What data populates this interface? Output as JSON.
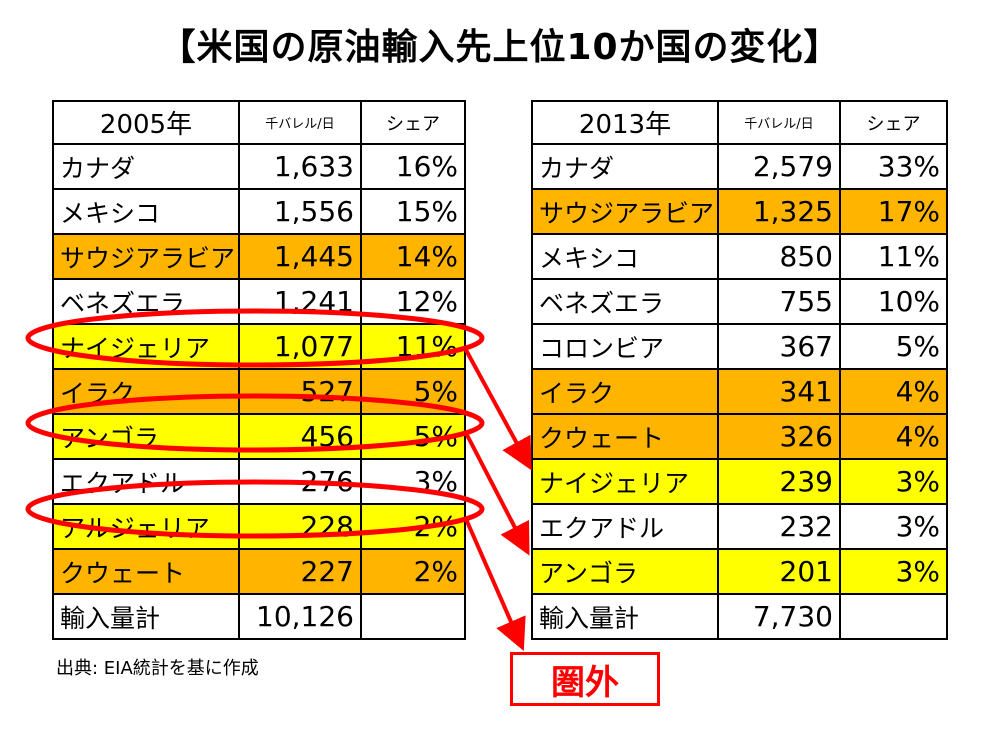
{
  "title": "【米国の原油輸入先上位10か国の変化】",
  "source": "出典: EIA統計を基に作成",
  "out_label": "圏外",
  "colors": {
    "orange": "#ffb400",
    "yellow": "#ffff00",
    "red": "#ff0000"
  },
  "chart_data": [
    {
      "type": "table",
      "title": "2005年",
      "columns": [
        "2005年",
        "千バレル/日",
        "シェア"
      ],
      "rows": [
        {
          "name": "カナダ",
          "value": "1,633",
          "share": "16%",
          "highlight": "none"
        },
        {
          "name": "メキシコ",
          "value": "1,556",
          "share": "15%",
          "highlight": "none"
        },
        {
          "name": "サウジアラビア",
          "value": "1,445",
          "share": "14%",
          "highlight": "orange"
        },
        {
          "name": "ベネズエラ",
          "value": "1,241",
          "share": "12%",
          "highlight": "none"
        },
        {
          "name": "ナイジェリア",
          "value": "1,077",
          "share": "11%",
          "highlight": "yellow"
        },
        {
          "name": "イラク",
          "value": "527",
          "share": "5%",
          "highlight": "orange"
        },
        {
          "name": "アンゴラ",
          "value": "456",
          "share": "5%",
          "highlight": "yellow"
        },
        {
          "name": "エクアドル",
          "value": "276",
          "share": "3%",
          "highlight": "none"
        },
        {
          "name": "アルジェリア",
          "value": "228",
          "share": "2%",
          "highlight": "yellow"
        },
        {
          "name": "クウェート",
          "value": "227",
          "share": "2%",
          "highlight": "orange"
        }
      ],
      "total": {
        "name": "輸入量計",
        "value": "10,126"
      }
    },
    {
      "type": "table",
      "title": "2013年",
      "columns": [
        "2013年",
        "千バレル/日",
        "シェア"
      ],
      "rows": [
        {
          "name": "カナダ",
          "value": "2,579",
          "share": "33%",
          "highlight": "none"
        },
        {
          "name": "サウジアラビア",
          "value": "1,325",
          "share": "17%",
          "highlight": "orange"
        },
        {
          "name": "メキシコ",
          "value": "850",
          "share": "11%",
          "highlight": "none"
        },
        {
          "name": "ベネズエラ",
          "value": "755",
          "share": "10%",
          "highlight": "none"
        },
        {
          "name": "コロンビア",
          "value": "367",
          "share": "5%",
          "highlight": "none"
        },
        {
          "name": "イラク",
          "value": "341",
          "share": "4%",
          "highlight": "orange"
        },
        {
          "name": "クウェート",
          "value": "326",
          "share": "4%",
          "highlight": "orange"
        },
        {
          "name": "ナイジェリア",
          "value": "239",
          "share": "3%",
          "highlight": "yellow"
        },
        {
          "name": "エクアドル",
          "value": "232",
          "share": "3%",
          "highlight": "none"
        },
        {
          "name": "アンゴラ",
          "value": "201",
          "share": "3%",
          "highlight": "yellow"
        }
      ],
      "total": {
        "name": "輸入量計",
        "value": "7,730"
      }
    }
  ]
}
